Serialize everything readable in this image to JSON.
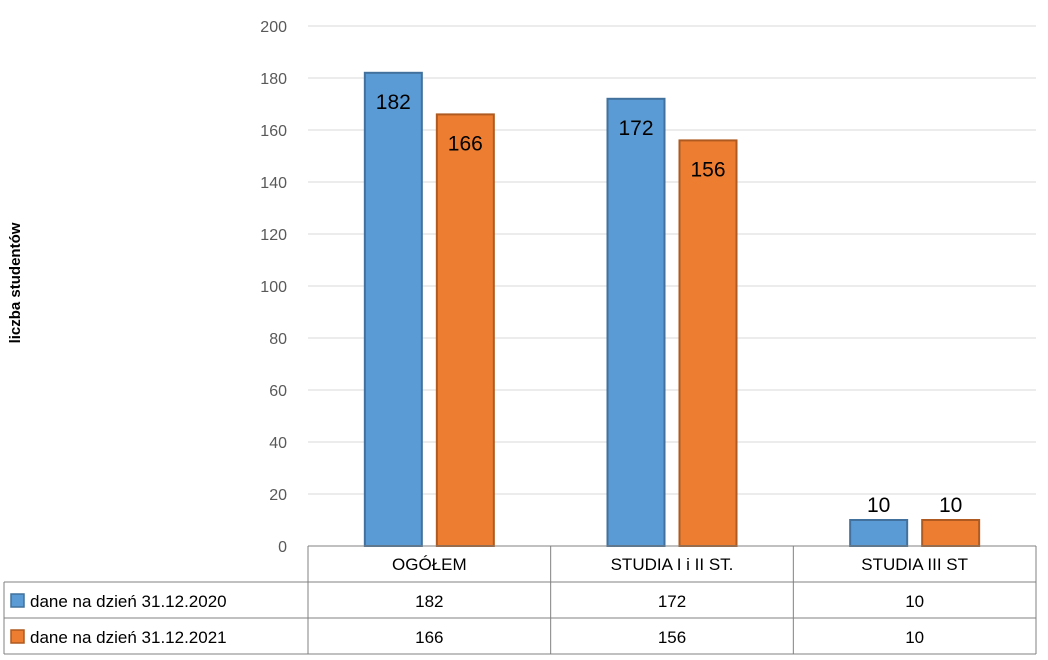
{
  "chart_data": {
    "type": "bar",
    "title": "",
    "xlabel": "",
    "ylabel": "liczba studentów",
    "ylim": [
      0,
      200
    ],
    "yticks": [
      0,
      20,
      40,
      60,
      80,
      100,
      120,
      140,
      160,
      180,
      200
    ],
    "grid": true,
    "legend": "data-table-left",
    "categories": [
      "OGÓŁEM",
      "STUDIA I i II ST.",
      "STUDIA III ST"
    ],
    "series": [
      {
        "name": "dane na dzień 31.12.2020",
        "values": [
          182,
          172,
          10
        ],
        "color": "#5B9BD5"
      },
      {
        "name": "dane na dzień 31.12.2021",
        "values": [
          166,
          156,
          10
        ],
        "color": "#ED7D31"
      }
    ]
  }
}
